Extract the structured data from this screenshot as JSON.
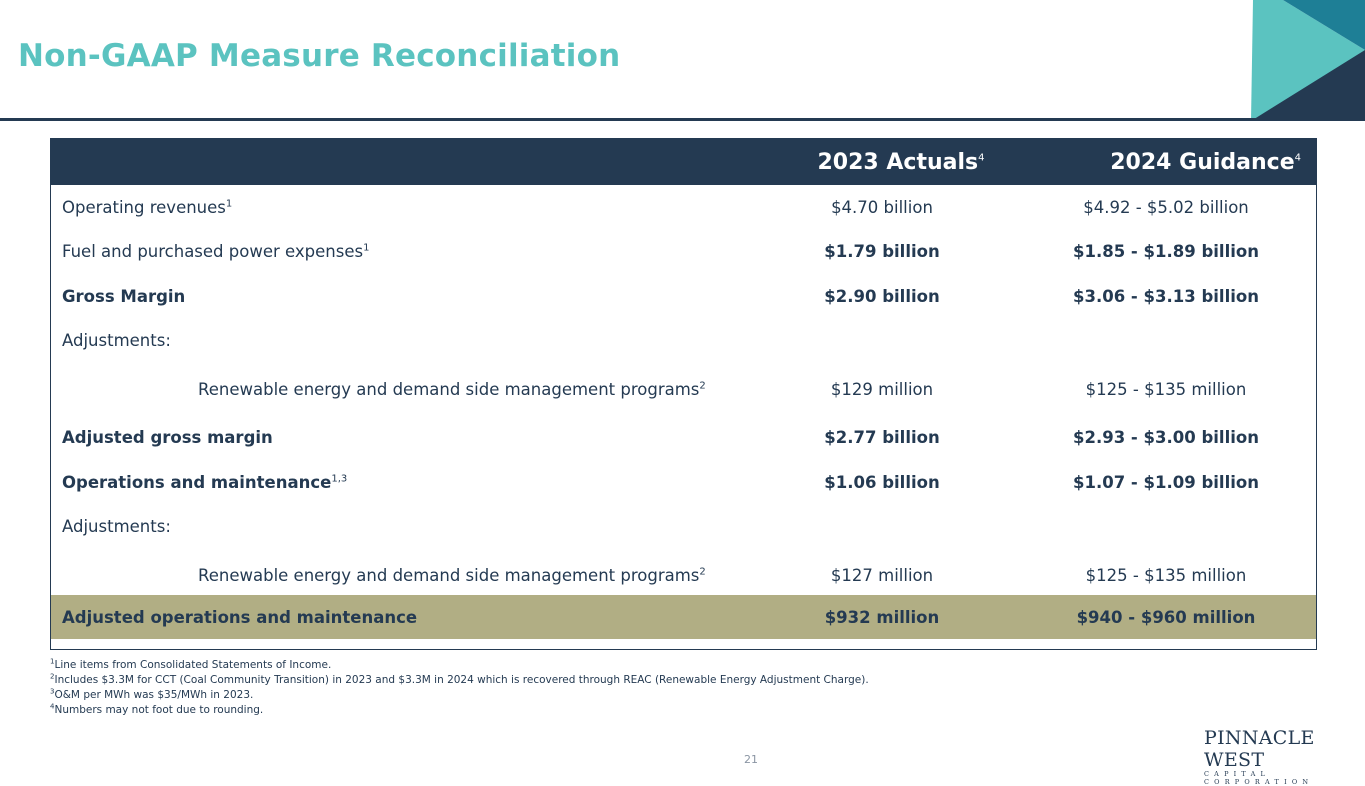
{
  "title": "Non-GAAP Measure Reconciliation",
  "colors": {
    "title": "#5bc3c0",
    "navy": "#243a52",
    "highlight": "#b1ae84",
    "teal": "#5bc3c0"
  },
  "table": {
    "headers": [
      {
        "text": "2023 Actuals",
        "sup": "4"
      },
      {
        "text": "2024 Guidance",
        "sup": "4"
      }
    ],
    "rows": [
      {
        "label": "Operating revenues",
        "sup": "1",
        "v2023": "$4.70 billion",
        "v2024": "$4.92 - $5.02 billion"
      },
      {
        "label": "Fuel and purchased power expenses",
        "sup": "1",
        "v2023": "$1.79 billion",
        "v2024": "$1.85 - $1.89 billion"
      },
      {
        "label": "Gross Margin",
        "sup": "",
        "v2023": "$2.90 billion",
        "v2024": "$3.06 - $3.13 billion"
      },
      {
        "label": "Adjustments:",
        "sup": "",
        "v2023": "",
        "v2024": ""
      },
      {
        "label": "Renewable energy and demand side management programs",
        "sup": "2",
        "v2023": "$129 million",
        "v2024": "$125 - $135 million"
      },
      {
        "label": "Adjusted gross margin",
        "sup": "",
        "v2023": "$2.77 billion",
        "v2024": "$2.93 - $3.00 billion"
      },
      {
        "label": "Operations and maintenance",
        "sup": "1,3",
        "v2023": "$1.06 billion",
        "v2024": "$1.07 - $1.09 billion"
      },
      {
        "label": "Adjustments:",
        "sup": "",
        "v2023": "",
        "v2024": ""
      },
      {
        "label": "Renewable energy and demand side management programs",
        "sup": "2",
        "v2023": "$127 million",
        "v2024": "$125 - $135 million"
      },
      {
        "label": "Adjusted operations and maintenance",
        "sup": "",
        "v2023": "$932 million",
        "v2024": "$940 - $960 million"
      }
    ]
  },
  "footnotes": [
    {
      "num": "1",
      "text": "Line items from Consolidated Statements of Income."
    },
    {
      "num": "2",
      "text": "Includes $3.3M for CCT (Coal Community Transition) in 2023 and $3.3M in 2024 which is recovered through REAC (Renewable Energy Adjustment Charge)."
    },
    {
      "num": "3",
      "text": "O&M per MWh was $35/MWh in 2023."
    },
    {
      "num": "4",
      "text": "Numbers may not foot due to rounding."
    }
  ],
  "page_number": "21",
  "logo": {
    "main": "PINNACLE WEST",
    "sub": "CAPITAL CORPORATION"
  }
}
